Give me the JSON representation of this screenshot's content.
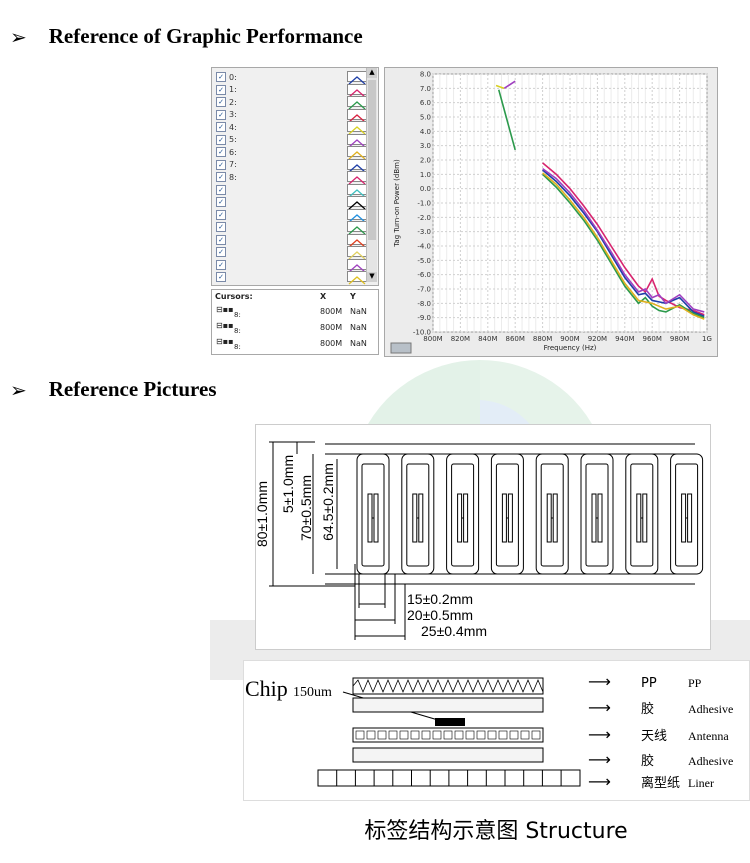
{
  "headings": {
    "graphic": "Reference of Graphic Performance",
    "pictures": "Reference Pictures"
  },
  "legend": {
    "items": [
      "0:",
      "1:",
      "2:",
      "3:",
      "4:",
      "5:",
      "6:",
      "7:",
      "8:",
      "",
      "",
      "",
      "",
      "",
      "",
      "",
      ""
    ],
    "swatch_colors": [
      "#1f3fa8",
      "#d8246e",
      "#2c9a4c",
      "#d82040",
      "#d8d020",
      "#a040c0",
      "#e0b020",
      "#1f3fa8",
      "#d8246e",
      "#40c0c0",
      "#000000",
      "#2090e0",
      "#2c9a4c",
      "#e04020",
      "#e0d060",
      "#a040c0",
      "#e0c020"
    ]
  },
  "cursors": {
    "header": "Cursors:",
    "col_x": "X",
    "col_y": "Y",
    "rows": [
      {
        "name": "8:",
        "x": "800M",
        "y": "NaN"
      },
      {
        "name": "8:",
        "x": "800M",
        "y": "NaN"
      },
      {
        "name": "8:",
        "x": "800M",
        "y": "NaN"
      }
    ]
  },
  "chart_data": {
    "type": "line",
    "ylabel": "Tag Turn-on Power (dBm)",
    "xlabel": "Frequency (Hz)",
    "xlim": [
      800,
      1000
    ],
    "ylim": [
      -10,
      8
    ],
    "x_ticks": [
      "800M",
      "820M",
      "840M",
      "860M",
      "880M",
      "900M",
      "920M",
      "940M",
      "960M",
      "980M",
      "1G"
    ],
    "y_ticks": [
      "8.0",
      "7.0",
      "6.0",
      "5.0",
      "4.0",
      "3.0",
      "2.0",
      "1.0",
      "0.0",
      "-1.0",
      "-2.0",
      "-3.0",
      "-4.0",
      "-5.0",
      "-6.0",
      "-7.0",
      "-8.0",
      "-9.0",
      "-10.0"
    ],
    "grid": true,
    "series": [
      {
        "color": "#d8246e",
        "points": [
          [
            880,
            1.8
          ],
          [
            890,
            1.0
          ],
          [
            900,
            0.0
          ],
          [
            910,
            -1.2
          ],
          [
            920,
            -2.5
          ],
          [
            930,
            -4.0
          ],
          [
            940,
            -5.5
          ],
          [
            950,
            -6.8
          ],
          [
            955,
            -7.2
          ],
          [
            960,
            -6.3
          ],
          [
            965,
            -7.5
          ],
          [
            970,
            -7.8
          ],
          [
            980,
            -8.3
          ],
          [
            990,
            -8.5
          ],
          [
            998,
            -8.8
          ]
        ]
      },
      {
        "color": "#1f3fa8",
        "points": [
          [
            880,
            1.3
          ],
          [
            890,
            0.5
          ],
          [
            900,
            -0.5
          ],
          [
            910,
            -1.7
          ],
          [
            920,
            -3.0
          ],
          [
            930,
            -4.6
          ],
          [
            940,
            -6.2
          ],
          [
            950,
            -7.4
          ],
          [
            955,
            -7.3
          ],
          [
            960,
            -7.8
          ],
          [
            965,
            -7.9
          ],
          [
            970,
            -8.0
          ],
          [
            980,
            -7.6
          ],
          [
            990,
            -8.6
          ],
          [
            998,
            -8.9
          ]
        ]
      },
      {
        "color": "#2c9a4c",
        "points": [
          [
            880,
            1.0
          ],
          [
            890,
            0.1
          ],
          [
            900,
            -1.0
          ],
          [
            910,
            -2.2
          ],
          [
            920,
            -3.6
          ],
          [
            930,
            -5.2
          ],
          [
            940,
            -6.8
          ],
          [
            950,
            -8.0
          ],
          [
            955,
            -7.6
          ],
          [
            960,
            -8.2
          ],
          [
            965,
            -8.5
          ],
          [
            970,
            -8.6
          ],
          [
            980,
            -8.1
          ],
          [
            990,
            -8.7
          ],
          [
            998,
            -9.0
          ]
        ]
      },
      {
        "color": "#a040c0",
        "points": [
          [
            880,
            1.4
          ],
          [
            890,
            0.7
          ],
          [
            900,
            -0.3
          ],
          [
            910,
            -1.5
          ],
          [
            920,
            -2.9
          ],
          [
            930,
            -4.4
          ],
          [
            940,
            -6.0
          ],
          [
            950,
            -7.2
          ],
          [
            955,
            -7.0
          ],
          [
            960,
            -7.6
          ],
          [
            965,
            -7.4
          ],
          [
            970,
            -8.0
          ],
          [
            980,
            -7.4
          ],
          [
            990,
            -8.4
          ],
          [
            998,
            -8.6
          ]
        ]
      },
      {
        "color": "#e0b020",
        "points": [
          [
            880,
            1.1
          ],
          [
            890,
            0.3
          ],
          [
            900,
            -0.8
          ],
          [
            910,
            -2.0
          ],
          [
            920,
            -3.4
          ],
          [
            930,
            -5.0
          ],
          [
            940,
            -6.6
          ],
          [
            950,
            -7.8
          ],
          [
            960,
            -8.0
          ],
          [
            970,
            -8.4
          ],
          [
            980,
            -8.2
          ],
          [
            990,
            -8.8
          ],
          [
            998,
            -9.1
          ]
        ]
      },
      {
        "color": "#2c9a4c",
        "points": [
          [
            848,
            6.9
          ],
          [
            854,
            4.8
          ],
          [
            860,
            2.7
          ]
        ]
      },
      {
        "color": "#d8d020",
        "points": [
          [
            846,
            7.2
          ],
          [
            852,
            7.0
          ]
        ]
      },
      {
        "color": "#a040c0",
        "points": [
          [
            852,
            7.0
          ],
          [
            860,
            7.5
          ]
        ]
      }
    ]
  },
  "dimensions": {
    "d80": "80±1.0mm",
    "d5": "5±1.0mm",
    "d70": "70±0.5mm",
    "d645": "64.5±0.2mm",
    "d15": "15±0.2mm",
    "d20": "20±0.5mm",
    "d25": "25±0.4mm"
  },
  "structure": {
    "chip_label": "Chip",
    "chip_size": "150um",
    "layers": [
      {
        "cn": "PP",
        "en": "PP"
      },
      {
        "cn": "胶",
        "en": "Adhesive"
      },
      {
        "cn": "天线",
        "en": "Antenna"
      },
      {
        "cn": "胶",
        "en": "Adhesive"
      },
      {
        "cn": "离型纸",
        "en": "Liner"
      }
    ],
    "caption": "标签结构示意图 Structure"
  }
}
